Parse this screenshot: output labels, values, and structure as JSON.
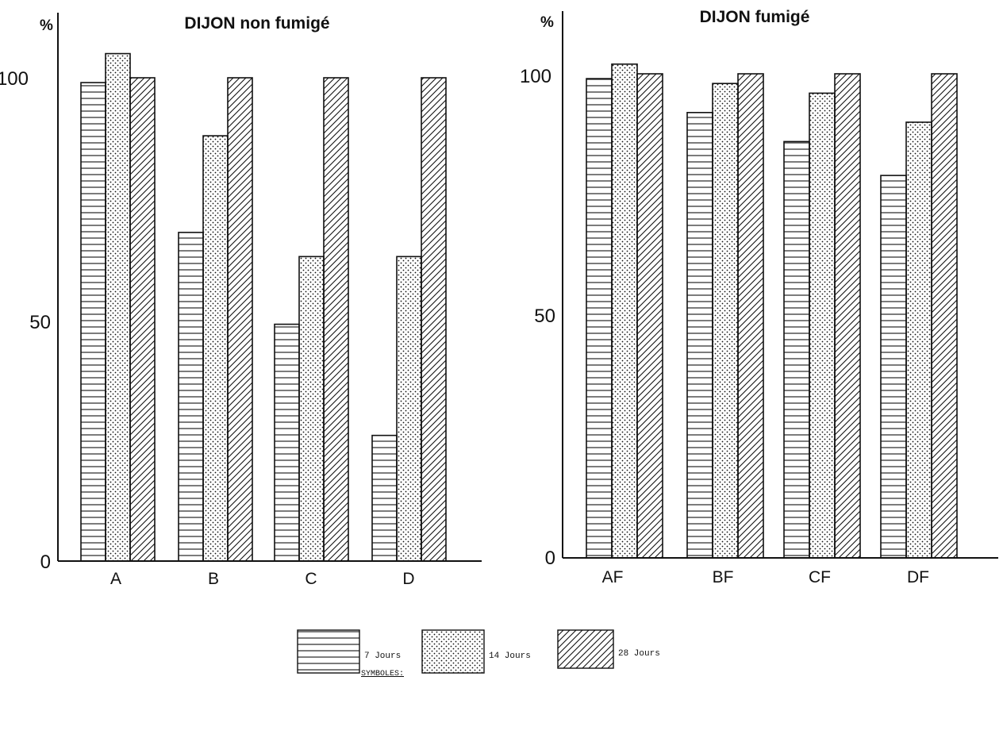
{
  "chart_data": [
    {
      "type": "bar",
      "title": "DIJON non fumigé",
      "ylabel": "%",
      "xlabel": "",
      "categories": [
        "A",
        "B",
        "C",
        "D"
      ],
      "ylim": [
        0,
        105
      ],
      "yticks": [
        0,
        50,
        100
      ],
      "series": [
        {
          "name": "7 Jours",
          "values": [
            99,
            68,
            49,
            26
          ]
        },
        {
          "name": "14 Jours",
          "values": [
            105,
            88,
            63,
            63
          ]
        },
        {
          "name": "28 Jours",
          "values": [
            100,
            100,
            100,
            100
          ]
        }
      ]
    },
    {
      "type": "bar",
      "title": "DIJON fumigé",
      "ylabel": "%",
      "xlabel": "",
      "categories": [
        "AF",
        "BF",
        "CF",
        "DF"
      ],
      "ylim": [
        0,
        103
      ],
      "yticks": [
        0,
        50,
        100
      ],
      "series": [
        {
          "name": "7 Jours",
          "values": [
            99,
            92,
            86,
            79
          ]
        },
        {
          "name": "14 Jours",
          "values": [
            102,
            98,
            96,
            90
          ]
        },
        {
          "name": "28 Jours",
          "values": [
            100,
            100,
            100,
            100
          ]
        }
      ]
    }
  ],
  "legend": {
    "title": "SYMBOLES:",
    "items": [
      {
        "label": "7 Jours",
        "pattern": "horizontal-lines"
      },
      {
        "label": "14 Jours",
        "pattern": "dots"
      },
      {
        "label": "28 Jours",
        "pattern": "diagonal-hatch"
      }
    ]
  },
  "colors": {
    "ink": "#111111",
    "background": "#ffffff"
  }
}
